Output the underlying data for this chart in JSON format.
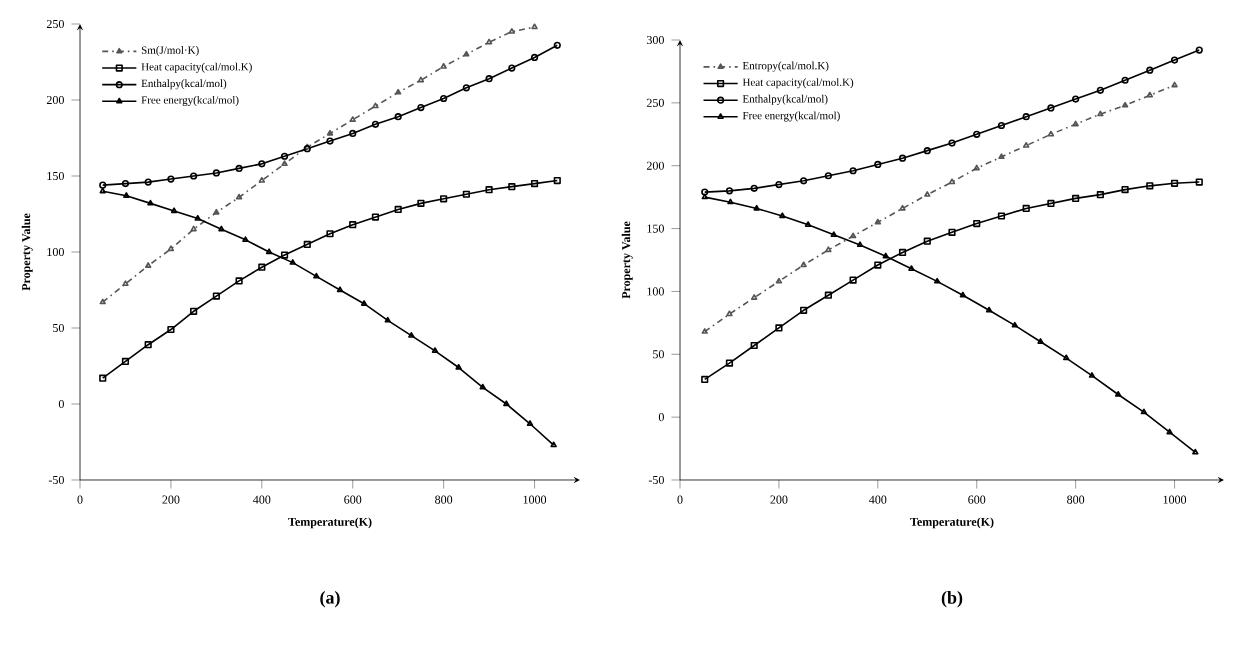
{
  "chart_data": [
    {
      "type": "line",
      "annotations": [
        "**(a)**"
      ],
      "xlabel": "Temperature(K)",
      "ylabel": "Property Value",
      "x": [
        50,
        100,
        150,
        200,
        250,
        300,
        350,
        400,
        450,
        500,
        550,
        600,
        650,
        700,
        750,
        800,
        850,
        900,
        950,
        1000,
        1050
      ],
      "xlim": [
        0,
        1100
      ],
      "ylim": [
        -50,
        250
      ],
      "xticks": [
        0,
        200,
        400,
        600,
        800,
        1000
      ],
      "yticks": [
        -50,
        0,
        50,
        100,
        150,
        200,
        250
      ],
      "legend": "top left",
      "series": [
        {
          "name": "Sm(J/mol·K)",
          "color": "#555555",
          "marker": "triangle",
          "line_style": "dashed",
          "values": [
            67,
            79,
            91,
            102,
            115,
            126,
            136,
            147,
            158,
            169,
            178,
            187,
            196,
            205,
            213,
            222,
            230,
            238,
            245,
            248,
            null
          ]
        },
        {
          "name": "Heat capacity(cal/mol.K)",
          "color": "#000000",
          "marker": "square",
          "line_style": "solid",
          "values": [
            17,
            28,
            39,
            49,
            61,
            71,
            81,
            90,
            98,
            105,
            112,
            118,
            123,
            128,
            132,
            135,
            138,
            141,
            143,
            145,
            147
          ]
        },
        {
          "name": "Enthalpy(kcal/mol)",
          "color": "#000000",
          "marker": "circle",
          "line_style": "solid",
          "values": [
            144,
            145,
            146,
            148,
            150,
            152,
            155,
            158,
            163,
            168,
            173,
            178,
            184,
            189,
            195,
            201,
            208,
            214,
            221,
            228,
            236
          ]
        },
        {
          "name": "Free energy(kcal/mol)",
          "color": "#000000",
          "marker": "triangle",
          "line_style": "solid",
          "x": [
            50,
            102,
            155,
            207,
            259,
            311,
            364,
            416,
            468,
            520,
            572,
            625,
            677,
            729,
            781,
            833,
            886,
            938,
            990,
            1042
          ],
          "values": [
            140,
            137,
            132,
            127,
            122,
            115,
            108,
            100,
            93,
            84,
            75,
            66,
            55,
            45,
            35,
            24,
            11,
            0,
            -13,
            -27
          ]
        }
      ]
    },
    {
      "type": "line",
      "annotations": [
        "**(b)**"
      ],
      "xlabel": "Temperature(K)",
      "ylabel": "Property Value",
      "x": [
        50,
        100,
        150,
        200,
        250,
        300,
        350,
        400,
        450,
        500,
        550,
        600,
        650,
        700,
        750,
        800,
        850,
        900,
        950,
        1000,
        1050
      ],
      "xlim": [
        0,
        1100
      ],
      "ylim": [
        -50,
        300
      ],
      "xticks": [
        0,
        200,
        400,
        600,
        800,
        1000
      ],
      "yticks": [
        -50,
        0,
        50,
        100,
        150,
        200,
        250,
        300
      ],
      "legend": "top left",
      "series": [
        {
          "name": "Entropy(cal/mol.K)",
          "color": "#555555",
          "marker": "triangle",
          "line_style": "dashed",
          "values": [
            68,
            82,
            95,
            108,
            121,
            133,
            144,
            155,
            166,
            177,
            187,
            198,
            207,
            216,
            225,
            233,
            241,
            248,
            256,
            264,
            null
          ]
        },
        {
          "name": "Heat capacity(cal/mol.K)",
          "color": "#000000",
          "marker": "square",
          "line_style": "solid",
          "values": [
            30,
            43,
            57,
            71,
            85,
            97,
            109,
            121,
            131,
            140,
            147,
            154,
            160,
            166,
            170,
            174,
            177,
            181,
            184,
            186,
            187
          ]
        },
        {
          "name": "Enthalpy(kcal/mol)",
          "color": "#000000",
          "marker": "circle",
          "line_style": "solid",
          "values": [
            179,
            180,
            182,
            185,
            188,
            192,
            196,
            201,
            206,
            212,
            218,
            225,
            232,
            239,
            246,
            253,
            260,
            268,
            276,
            284,
            292
          ]
        },
        {
          "name": "Free energy(kcal/mol)",
          "color": "#000000",
          "marker": "triangle",
          "line_style": "solid",
          "x": [
            50,
            102,
            155,
            207,
            259,
            311,
            364,
            416,
            468,
            520,
            572,
            625,
            677,
            729,
            781,
            833,
            886,
            938,
            990,
            1042
          ],
          "values": [
            175,
            171,
            166,
            160,
            153,
            145,
            137,
            128,
            118,
            108,
            97,
            85,
            73,
            60,
            47,
            33,
            18,
            4,
            -12,
            -28
          ]
        }
      ]
    }
  ]
}
